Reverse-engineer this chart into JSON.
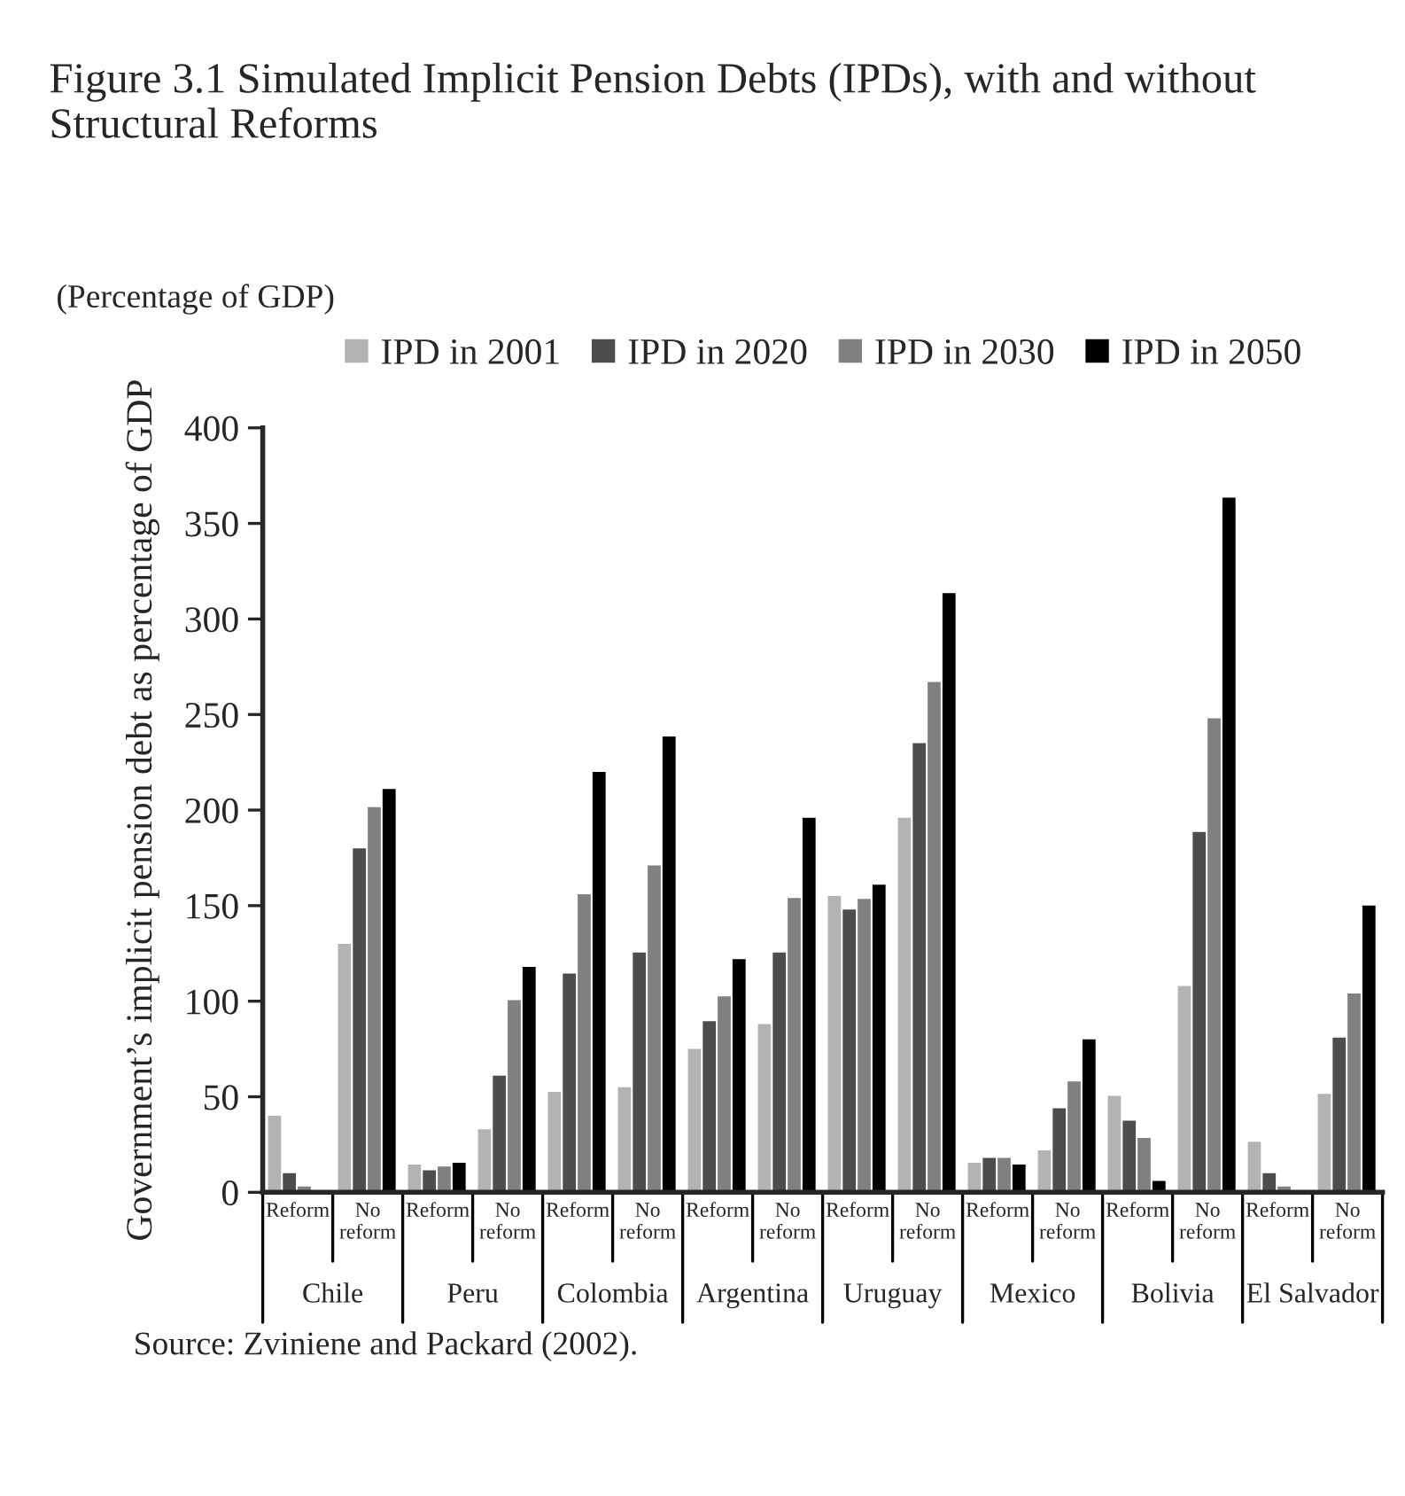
{
  "chart_data": {
    "type": "bar",
    "title": "Figure 3.1 Simulated Implicit Pension Debts (IPDs), with and without Structural Reforms",
    "subtitle": "(Percentage of GDP)",
    "ylabel": "Government’s implicit pension debt as percentage of GDP",
    "categories": [
      "Reform",
      "No reform",
      "Reform",
      "No reform",
      "Reform",
      "No reform",
      "Reform",
      "No reform",
      "Reform",
      "No reform",
      "Reform",
      "No reform",
      "Reform",
      "No reform",
      "Reform",
      "No reform"
    ],
    "series": [
      {
        "name": "IPD in 2001",
        "color": "#b3b3b3",
        "values": [
          40,
          130,
          14.5,
          33,
          52.5,
          55,
          75,
          88,
          155,
          196,
          15.5,
          22,
          50.5,
          108,
          26.5,
          51.5
        ]
      },
      {
        "name": "IPD in 2020",
        "color": "#4d4d4d",
        "values": [
          10,
          180,
          11.5,
          61,
          114.5,
          125.5,
          89.5,
          125.5,
          148,
          235,
          18,
          44,
          37.5,
          188.5,
          10,
          81
        ]
      },
      {
        "name": "IPD in 2030",
        "color": "#808080",
        "values": [
          3,
          201.5,
          13.5,
          100.5,
          156,
          171,
          102.5,
          154,
          153.5,
          267,
          18,
          58,
          28.5,
          248,
          3,
          104
        ]
      },
      {
        "name": "IPD in 2050",
        "color": "#000000",
        "values": [
          0,
          211,
          15.5,
          118,
          220,
          238.5,
          122,
          196,
          161,
          313.5,
          14.5,
          80,
          6,
          363.5,
          0,
          150
        ]
      }
    ],
    "ylim": [
      0,
      400
    ],
    "yticks": [
      0,
      50,
      100,
      150,
      200,
      250,
      300,
      350,
      400
    ],
    "grid": false,
    "legend": "top",
    "annotations": [
      "Chile",
      "Peru",
      "Colombia",
      "Argentina",
      "Uruguay",
      "Mexico",
      "Bolivia",
      "El Salvador",
      "Source: Zviniene and Packard (2002)."
    ]
  }
}
